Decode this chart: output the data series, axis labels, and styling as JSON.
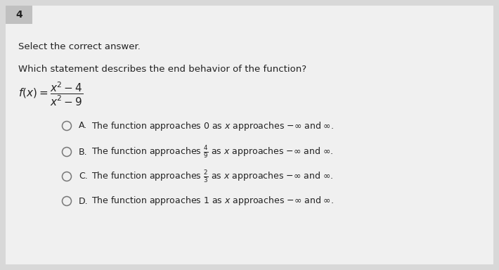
{
  "background_color": "#d8d8d8",
  "card_color": "#f0f0f0",
  "question_number": "4",
  "instruction": "Select the correct answer.",
  "question": "Which statement describes the end behavior of the function?",
  "options": [
    {
      "label": "A.",
      "text_before": "The function approaches 0 as ",
      "fraction": "",
      "text_after": "$x$ approaches $-\\infty$ and $\\infty$."
    },
    {
      "label": "B.",
      "text_before": "The function approaches $\\frac{4}{9}$ as ",
      "fraction": "",
      "text_after": "$x$ approaches $-\\infty$ and $\\infty$."
    },
    {
      "label": "C.",
      "text_before": "The function approaches $\\frac{2}{3}$ as ",
      "fraction": "",
      "text_after": "$x$ approaches $-\\infty$ and $\\infty$."
    },
    {
      "label": "D.",
      "text_before": "The function approaches 1 as ",
      "fraction": "",
      "text_after": "$x$ approaches $-\\infty$ and $\\infty$."
    }
  ],
  "option_texts": [
    "The function approaches 0 as $x$ approaches $-\\infty$ and $\\infty$.",
    "The function approaches $\\frac{4}{9}$ as $x$ approaches $-\\infty$ and $\\infty$.",
    "The function approaches $\\frac{2}{3}$ as $x$ approaches $-\\infty$ and $\\infty$.",
    "The function approaches 1 as $x$ approaches $-\\infty$ and $\\infty$."
  ],
  "option_labels": [
    "A.",
    "B.",
    "C.",
    "D."
  ],
  "circle_color": "#777777",
  "text_color": "#222222",
  "label_color": "#222222",
  "number_bg": "#c0c0c0",
  "font_size_instruction": 9.5,
  "font_size_question": 9.5,
  "font_size_function": 10,
  "font_size_options": 9,
  "font_size_number": 10
}
